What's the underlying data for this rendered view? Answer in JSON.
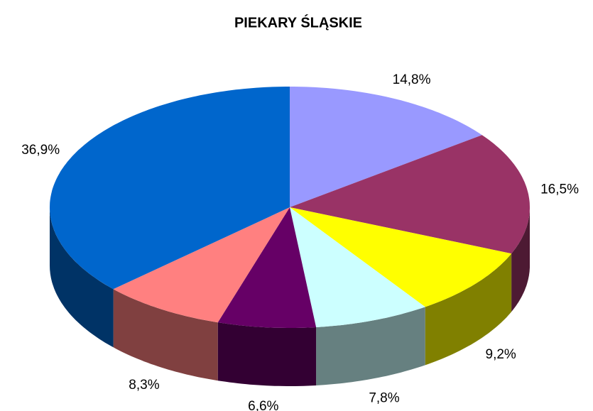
{
  "chart_data": {
    "type": "pie3d",
    "title": "PIEKARY ŚLĄSKIE",
    "values": [
      14.8,
      16.5,
      9.2,
      7.8,
      6.6,
      8.3,
      36.9
    ],
    "value_labels": [
      "14,8%",
      "16,5%",
      "9,2%",
      "7,8%",
      "6,6%",
      "8,3%",
      "36,9%"
    ],
    "colors": [
      "#9999ff",
      "#993366",
      "#ffff00",
      "#ccffff",
      "#660066",
      "#ff8080",
      "#0066cc"
    ]
  }
}
